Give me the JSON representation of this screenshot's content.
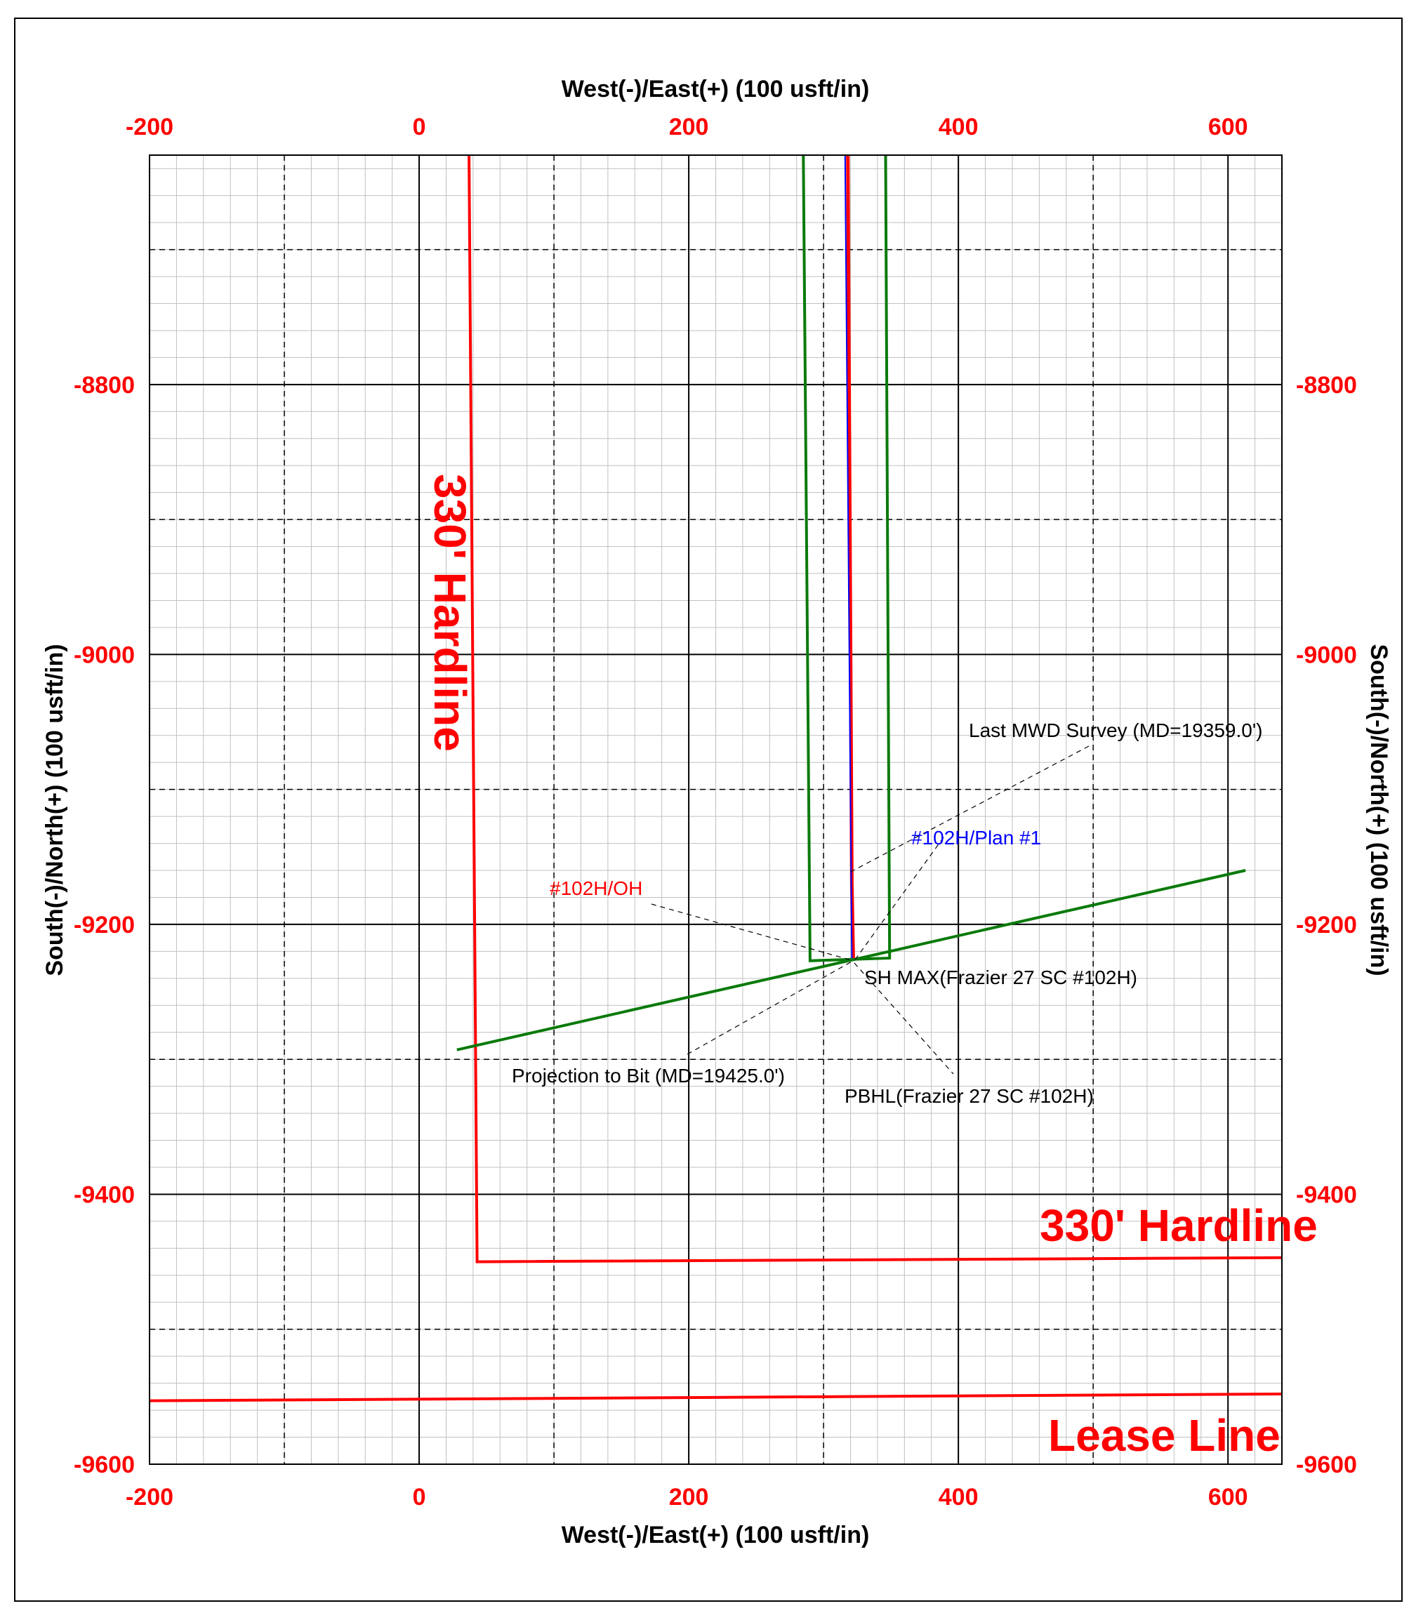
{
  "chart_data": {
    "type": "line",
    "x_axis_label": "West(-)/East(+) (100 usft/in)",
    "y_axis_label": "South(-)/North(+) (100 usft/in)",
    "xlim": [
      -200,
      640
    ],
    "ylim": [
      -9600,
      -8630
    ],
    "x_tick_labels": [
      "-200",
      "0",
      "200",
      "400",
      "600"
    ],
    "x_tick_values": [
      -200,
      0,
      200,
      400,
      600
    ],
    "y_tick_labels": [
      "-8800",
      "-9000",
      "-9200",
      "-9400",
      "-9600"
    ],
    "y_tick_values": [
      -8800,
      -9000,
      -9200,
      -9400,
      -9600
    ],
    "colors": {
      "red": "#ff0000",
      "green": "#0a7a0a",
      "blue": "#0000ff",
      "grid_minor": "#c0c0c0",
      "text": "#000000"
    },
    "series": [
      {
        "name": "#102H/OH",
        "color": "#ff0000",
        "points": [
          [
            318,
            -8630
          ],
          [
            321,
            -9170
          ],
          [
            322,
            -9225
          ]
        ]
      },
      {
        "name": "#102H/Plan  #1",
        "color": "#0000ff",
        "points": [
          [
            316,
            -8630
          ],
          [
            321,
            -9225
          ]
        ]
      }
    ],
    "boundaries": [
      {
        "color": "#ff0000",
        "points": [
          [
            37,
            -8630
          ],
          [
            43,
            -9450
          ],
          [
            640,
            -9447
          ]
        ]
      },
      {
        "color": "#ff0000",
        "points": [
          [
            -200,
            -9553
          ],
          [
            640,
            -9548
          ]
        ]
      },
      {
        "color": "#0a7a0a",
        "points": [
          [
            285,
            -8630
          ],
          [
            290,
            -9227
          ],
          [
            349,
            -9225
          ],
          [
            346,
            -8630
          ]
        ]
      },
      {
        "color": "#0a7a0a",
        "points": [
          [
            28,
            -9293
          ],
          [
            613,
            -9160
          ]
        ]
      }
    ],
    "annotations": [
      {
        "text": "330' Hardline",
        "color": "#ff0000"
      },
      {
        "text": "330' Hardline",
        "color": "#ff0000"
      },
      {
        "text": "Lease Line",
        "color": "#ff0000"
      },
      {
        "text": "Last MWD Survey (MD=19359.0')",
        "color": "#000000"
      },
      {
        "text": "#102H/Plan  #1",
        "color": "#0000ff"
      },
      {
        "text": "#102H/OH",
        "color": "#ff0000"
      },
      {
        "text": "SH MAX(Frazier 27 SC #102H)",
        "color": "#000000"
      },
      {
        "text": "Projection to Bit  (MD=19425.0')",
        "color": "#000000"
      },
      {
        "text": "PBHL(Frazier 27 SC #102H)",
        "color": "#000000"
      }
    ]
  }
}
